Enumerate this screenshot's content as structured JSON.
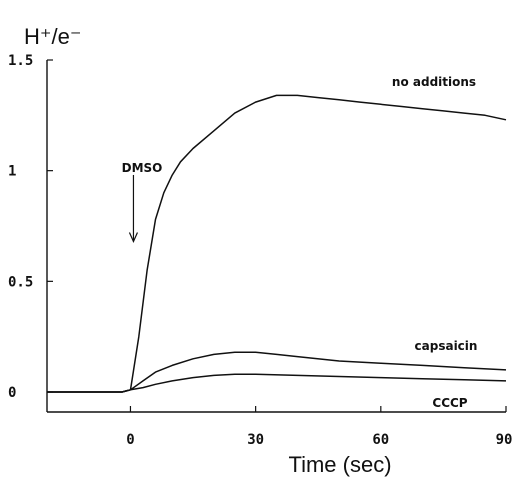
{
  "chart_data": {
    "type": "line",
    "ylabel": "H⁺/e⁻",
    "xlabel": "Time (sec)",
    "xlim": [
      -20,
      90
    ],
    "ylim": [
      0,
      1.5
    ],
    "xticks": [
      0,
      30,
      60,
      90
    ],
    "xtick_labels": [
      "0",
      "30",
      "60",
      "90"
    ],
    "yticks": [
      0,
      0.5,
      1,
      1.5
    ],
    "ytick_labels": [
      "0",
      "0.5",
      "1",
      "1.5"
    ],
    "grid": false,
    "legend": "none (series labeled inline)",
    "annotations": [
      {
        "text": "DMSO",
        "x": 0,
        "y": 1.08,
        "arrow_to_y": 0.68
      }
    ],
    "series": [
      {
        "name": "no additions",
        "x": [
          -20,
          -10,
          -2,
          0,
          2,
          4,
          6,
          8,
          10,
          12,
          15,
          20,
          25,
          30,
          35,
          40,
          45,
          50,
          55,
          60,
          65,
          70,
          75,
          80,
          85,
          90
        ],
        "y": [
          0,
          0,
          0,
          0.01,
          0.25,
          0.55,
          0.78,
          0.9,
          0.98,
          1.04,
          1.1,
          1.18,
          1.26,
          1.31,
          1.34,
          1.34,
          1.33,
          1.32,
          1.31,
          1.3,
          1.29,
          1.28,
          1.27,
          1.26,
          1.25,
          1.23
        ]
      },
      {
        "name": "capsaicin",
        "x": [
          -20,
          -10,
          -2,
          0,
          3,
          6,
          10,
          15,
          20,
          25,
          30,
          35,
          40,
          50,
          60,
          70,
          80,
          90
        ],
        "y": [
          0,
          0,
          0,
          0.01,
          0.05,
          0.09,
          0.12,
          0.15,
          0.17,
          0.18,
          0.18,
          0.17,
          0.16,
          0.14,
          0.13,
          0.12,
          0.11,
          0.1
        ]
      },
      {
        "name": "CCCP",
        "x": [
          -20,
          -10,
          -2,
          0,
          3,
          6,
          10,
          15,
          20,
          25,
          30,
          40,
          50,
          60,
          70,
          80,
          90
        ],
        "y": [
          0,
          0,
          0,
          0.01,
          0.02,
          0.035,
          0.05,
          0.065,
          0.075,
          0.08,
          0.08,
          0.075,
          0.07,
          0.065,
          0.06,
          0.055,
          0.05
        ]
      }
    ],
    "series_labels": [
      "no additions",
      "capsaicin",
      "CCCP"
    ]
  }
}
